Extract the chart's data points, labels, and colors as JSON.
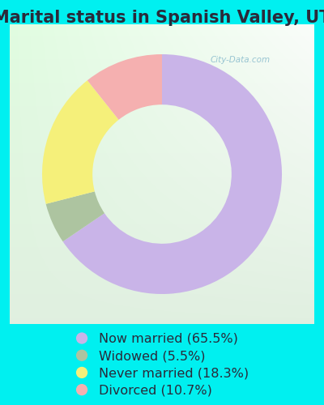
{
  "title": "Marital status in Spanish Valley, UT",
  "slices": [
    65.5,
    5.5,
    18.3,
    10.7
  ],
  "colors": [
    "#c9b4e8",
    "#adc4a0",
    "#f5f07a",
    "#f5b0b0"
  ],
  "labels": [
    "Now married (65.5%)",
    "Widowed (5.5%)",
    "Never married (18.3%)",
    "Divorced (10.7%)"
  ],
  "background_color": "#00f0f0",
  "title_fontsize": 15,
  "legend_fontsize": 11.5,
  "watermark": "City-Data.com",
  "title_color": "#2a2a3a"
}
